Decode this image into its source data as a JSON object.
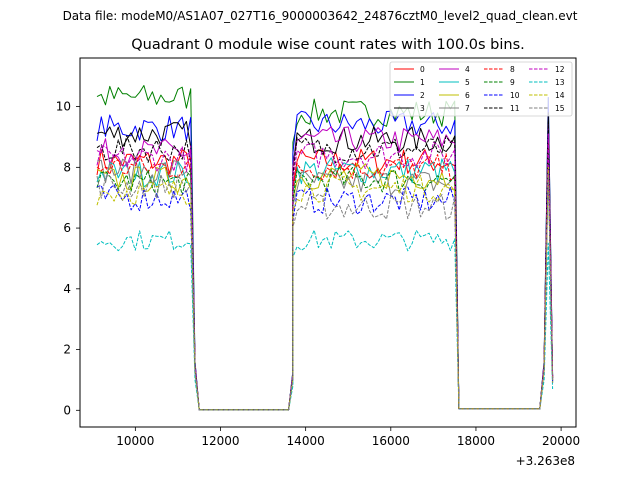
{
  "header": {
    "data_file": "Data file: modeM0/AS1A07_027T16_9000003642_24876cztM0_level2_quad_clean.evt"
  },
  "chart_data": {
    "type": "line",
    "title": "Quadrant 0 module wise count rates with 100.0s bins.",
    "xlabel": "",
    "ylabel": "",
    "x_offset_label": "+3.263e8",
    "xlim": [
      8700,
      20350
    ],
    "ylim": [
      -0.55,
      11.6
    ],
    "x_ticks": [
      10000,
      12000,
      14000,
      16000,
      18000,
      20000
    ],
    "x_tick_labels": [
      "10000",
      "12000",
      "14000",
      "16000",
      "18000",
      "20000"
    ],
    "y_ticks": [
      0,
      2,
      4,
      6,
      8,
      10
    ],
    "y_tick_labels": [
      "0",
      "2",
      "4",
      "6",
      "8",
      "10"
    ],
    "legend_location": "top-right",
    "segments": [
      {
        "x_start": 9100,
        "x_end": 11300,
        "bins": 23
      },
      {
        "x_start": 13700,
        "x_end": 17500,
        "bins": 39
      },
      {
        "x_start": 19600,
        "x_end": 19800,
        "bins": 3
      }
    ],
    "gaps": [
      {
        "x": [
          11300,
          11400,
          11500,
          13600,
          13700
        ]
      },
      {
        "x": [
          17500,
          17600,
          17700,
          19500,
          19600
        ]
      }
    ],
    "series": [
      {
        "name": "0",
        "color": "#ff0000",
        "dash": "solid",
        "level1": 8.2,
        "level2": 8.2,
        "peak": 9.0,
        "low_tail": 1.5
      },
      {
        "name": "1",
        "color": "#008000",
        "dash": "solid",
        "level1": 10.3,
        "level2": 9.8,
        "peak": 10.3,
        "low_tail": 1.6
      },
      {
        "name": "2",
        "color": "#0000ff",
        "dash": "solid",
        "level1": 9.3,
        "level2": 9.4,
        "peak": 10.3,
        "low_tail": 1.6
      },
      {
        "name": "3",
        "color": "#000000",
        "dash": "solid",
        "level1": 9.1,
        "level2": 8.9,
        "peak": 9.8,
        "low_tail": 1.5
      },
      {
        "name": "4",
        "color": "#bf00bf",
        "dash": "solid",
        "level1": 8.5,
        "level2": 8.9,
        "peak": 9.4,
        "low_tail": 1.5
      },
      {
        "name": "5",
        "color": "#00bfbf",
        "dash": "solid",
        "level1": 7.8,
        "level2": 7.9,
        "peak": 8.5,
        "low_tail": 1.4
      },
      {
        "name": "6",
        "color": "#bfbf00",
        "dash": "solid",
        "level1": 7.6,
        "level2": 7.7,
        "peak": 8.3,
        "low_tail": 1.4
      },
      {
        "name": "7",
        "color": "#808080",
        "dash": "solid",
        "level1": 7.9,
        "level2": 7.5,
        "peak": 8.2,
        "low_tail": 1.4
      },
      {
        "name": "8",
        "color": "#ff0000",
        "dash": "dashed",
        "level1": 8.0,
        "level2": 8.0,
        "peak": 8.8,
        "low_tail": 1.4
      },
      {
        "name": "9",
        "color": "#008000",
        "dash": "dashed",
        "level1": 7.5,
        "level2": 7.6,
        "peak": 8.5,
        "low_tail": 1.3
      },
      {
        "name": "10",
        "color": "#0000ff",
        "dash": "dashed",
        "level1": 7.0,
        "level2": 6.9,
        "peak": 8.0,
        "low_tail": 1.3
      },
      {
        "name": "11",
        "color": "#000000",
        "dash": "dashed",
        "level1": 8.6,
        "level2": 8.6,
        "peak": 9.5,
        "low_tail": 1.5
      },
      {
        "name": "12",
        "color": "#bf00bf",
        "dash": "dashed",
        "level1": 8.3,
        "level2": 8.4,
        "peak": 9.1,
        "low_tail": 1.5
      },
      {
        "name": "13",
        "color": "#00bfbf",
        "dash": "dashed",
        "level1": 5.6,
        "level2": 5.6,
        "peak": 5.5,
        "low_tail": 1.0
      },
      {
        "name": "14",
        "color": "#bfbf00",
        "dash": "dashed",
        "level1": 7.2,
        "level2": 7.3,
        "peak": 8.0,
        "low_tail": 1.3
      },
      {
        "name": "15",
        "color": "#808080",
        "dash": "dashed",
        "level1": 7.4,
        "level2": 6.7,
        "peak": 7.8,
        "low_tail": 1.3
      }
    ]
  }
}
